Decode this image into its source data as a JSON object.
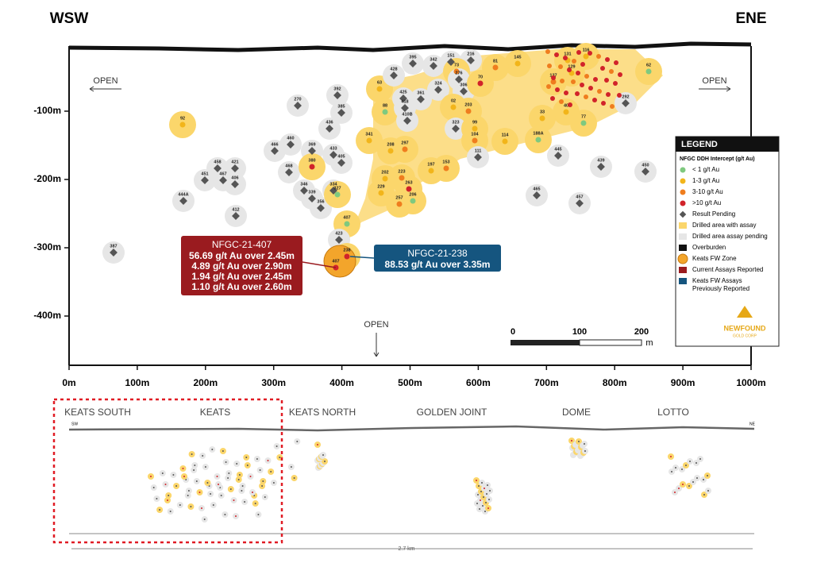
{
  "header": {
    "left": "WSW",
    "right": "ENE"
  },
  "axes": {
    "x_labels": [
      "0m",
      "100m",
      "200m",
      "300m",
      "400m",
      "500m",
      "600m",
      "700m",
      "800m",
      "900m",
      "1000m"
    ],
    "y_labels": [
      "-100m",
      "-200m",
      "-300m",
      "-400m"
    ]
  },
  "open_labels": [
    "OPEN",
    "OPEN",
    "OPEN"
  ],
  "callouts": [
    {
      "title": "NFGC-21-407",
      "lines": [
        "56.69 g/t Au over 2.45m",
        "4.89 g/t Au over 2.90m",
        "1.94 g/t Au over 2.45m",
        "1.10 g/t Au over 2.60m"
      ]
    },
    {
      "title": "NFGC-21-238",
      "lines": [
        "88.53 g/t Au over 3.35m"
      ]
    }
  ],
  "scale": {
    "labels": [
      "0",
      "100",
      "200"
    ],
    "unit": "m"
  },
  "legend": {
    "title": "LEGEND",
    "subtitle": "NFGC DDH Intercept (g/t Au)",
    "items": [
      [
        "< 1 g/t Au"
      ],
      [
        "1-3 g/t Au"
      ],
      [
        "3-10 g/t Au"
      ],
      [
        ">10 g/t Au"
      ],
      [
        "Result Pending"
      ],
      [
        "Drilled area with assay"
      ],
      [
        "Drilled area assay pending"
      ],
      [
        "Overburden"
      ],
      [
        "Keats FW Zone"
      ],
      [
        "Current Assays Reported"
      ],
      [
        "Keats FW Assays",
        "Previously Reported"
      ]
    ],
    "logo": [
      "NEWFOUND",
      "GOLD CORP"
    ]
  },
  "holes": [
    "387",
    "444A",
    "92",
    "412",
    "451",
    "458",
    "467",
    "421",
    "406",
    "466",
    "460",
    "468",
    "369",
    "270",
    "380",
    "392",
    "385",
    "436",
    "433",
    "405",
    "346",
    "339",
    "356",
    "334",
    "327",
    "407",
    "423",
    "238",
    "407",
    "341",
    "208",
    "297",
    "63",
    "88",
    "428",
    "395",
    "342",
    "151",
    "216",
    "425",
    "361",
    "418",
    "410B",
    "73",
    "276",
    "324",
    "306",
    "02",
    "203",
    "323",
    "99",
    "104",
    "114",
    "111",
    "188A",
    "445",
    "439",
    "450",
    "465",
    "457",
    "77",
    "62",
    "292",
    "116",
    "131",
    "145",
    "81",
    "70",
    "129",
    "137",
    "40",
    "33",
    "206",
    "257",
    "263",
    "229",
    "153",
    "197",
    "223",
    "202"
  ],
  "inset": {
    "zones": [
      "KEATS SOUTH",
      "KEATS",
      "KEATS NORTH",
      "GOLDEN JOINT",
      "DOME",
      "LOTTO"
    ],
    "left": "SW",
    "right": "NE",
    "length": "2.7 km"
  }
}
